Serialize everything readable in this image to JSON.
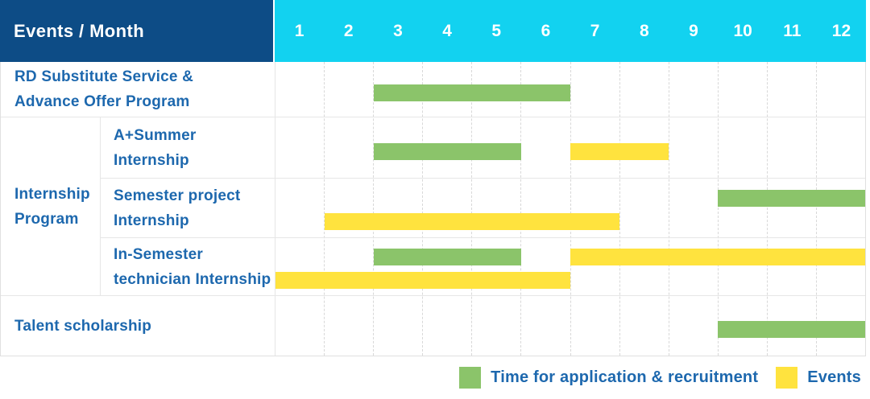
{
  "title": "Events / Month",
  "months": [
    "1",
    "2",
    "3",
    "4",
    "5",
    "6",
    "7",
    "8",
    "9",
    "10",
    "11",
    "12"
  ],
  "colors": {
    "header_navy": "#0d4c86",
    "header_cyan": "#12d2f0",
    "application_green": "#8bc46a",
    "events_yellow": "#ffe33e",
    "label_blue": "#1d68ae"
  },
  "legend": {
    "items": [
      {
        "key": "application",
        "label": "Time for application & recruitment"
      },
      {
        "key": "events",
        "label": "Events"
      }
    ]
  },
  "table": {
    "rows": [
      {
        "type": "single",
        "label_lines": [
          "RD Substitute Service &",
          "Advance Offer Program"
        ],
        "bars": [
          {
            "series": "application",
            "start": 3,
            "end": 6,
            "lane": "single"
          }
        ]
      },
      {
        "type": "group",
        "group_label_lines": [
          "Internship",
          "Program"
        ],
        "sub_rows": [
          {
            "label_lines": [
              "A+Summer",
              "Internship"
            ],
            "bars": [
              {
                "series": "application",
                "start": 3,
                "end": 5,
                "lane": "single"
              },
              {
                "series": "events",
                "start": 7,
                "end": 8,
                "lane": "single"
              }
            ]
          },
          {
            "label_lines": [
              "Semester project",
              "Internship"
            ],
            "bars": [
              {
                "series": "application",
                "start": 10,
                "end": 12,
                "lane": "top"
              },
              {
                "series": "events",
                "start": 2,
                "end": 7,
                "lane": "bottom"
              }
            ]
          },
          {
            "label_lines": [
              "In-Semester",
              "technician Internship"
            ],
            "bars": [
              {
                "series": "application",
                "start": 3,
                "end": 5,
                "lane": "top"
              },
              {
                "series": "events",
                "start": 7,
                "end": 12,
                "lane": "top"
              },
              {
                "series": "events",
                "start": 1,
                "end": 6,
                "lane": "bottom"
              }
            ]
          }
        ]
      },
      {
        "type": "single",
        "label_lines": [
          "Talent scholarship"
        ],
        "bars": [
          {
            "series": "application",
            "start": 10,
            "end": 12,
            "lane": "single"
          }
        ]
      }
    ]
  },
  "chart_data": {
    "type": "bar",
    "subtype": "gantt",
    "title": "Events / Month",
    "x": {
      "label": "Month",
      "ticks": [
        1,
        2,
        3,
        4,
        5,
        6,
        7,
        8,
        9,
        10,
        11,
        12
      ],
      "range": [
        1,
        12
      ]
    },
    "grid": "dashed-vertical-month-lines",
    "legend_position": "bottom-right",
    "series_legend": [
      {
        "name": "Time for application & recruitment",
        "color": "#8bc46a"
      },
      {
        "name": "Events",
        "color": "#ffe33e"
      }
    ],
    "rows": [
      {
        "group": "",
        "label": "RD Substitute Service & Advance Offer Program",
        "bars": [
          {
            "series": "Time for application & recruitment",
            "start_month": 3,
            "end_month": 6
          }
        ]
      },
      {
        "group": "Internship Program",
        "label": "A+Summer Internship",
        "bars": [
          {
            "series": "Time for application & recruitment",
            "start_month": 3,
            "end_month": 5
          },
          {
            "series": "Events",
            "start_month": 7,
            "end_month": 8
          }
        ]
      },
      {
        "group": "Internship Program",
        "label": "Semester project Internship",
        "bars": [
          {
            "series": "Time for application & recruitment",
            "start_month": 10,
            "end_month": 12
          },
          {
            "series": "Events",
            "start_month": 2,
            "end_month": 7
          }
        ]
      },
      {
        "group": "Internship Program",
        "label": "In-Semester technician Internship",
        "bars": [
          {
            "series": "Time for application & recruitment",
            "start_month": 3,
            "end_month": 5
          },
          {
            "series": "Events",
            "start_month": 7,
            "end_month": 12
          },
          {
            "series": "Events",
            "start_month": 1,
            "end_month": 6
          }
        ]
      },
      {
        "group": "",
        "label": "Talent scholarship",
        "bars": [
          {
            "series": "Time for application & recruitment",
            "start_month": 10,
            "end_month": 12
          }
        ]
      }
    ]
  }
}
